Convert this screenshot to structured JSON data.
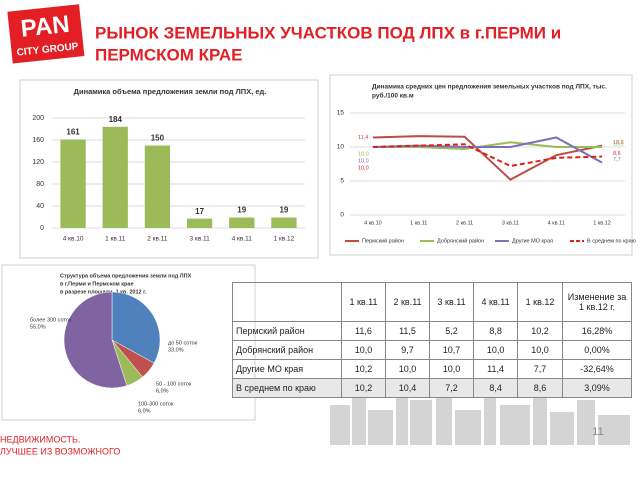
{
  "header": {
    "logo": [
      "PAN",
      "CITY GROUP"
    ],
    "title": [
      "РЫНОК ЗЕМЕЛЬНЫХ УЧАСТКОВ ПОД ЛПХ в г.ПЕРМИ и",
      "ПЕРМСКОМ КРАЕ"
    ]
  },
  "chart_data": [
    {
      "type": "bar",
      "title": "Динамика объема предложения земли под ЛПХ, ед.",
      "categories": [
        "4 кв.10",
        "1 кв.11",
        "2 кв.11",
        "3 кв.11",
        "4 кв.11",
        "1 кв.12"
      ],
      "values": [
        161,
        184,
        150,
        17,
        19,
        19
      ],
      "color": "#9bbb59",
      "ylim": [
        0,
        200
      ],
      "yticks": [
        0,
        40,
        80,
        120,
        160,
        200
      ],
      "grid": true
    },
    {
      "type": "line",
      "title": [
        "Динамика средних цен предложения земельных участков под ЛПХ, тыс.",
        "руб./100 кв.м"
      ],
      "categories": [
        "4 кв.10",
        "1 кв.11",
        "2 кв.11",
        "3 кв.11",
        "4 кв.11",
        "1 кв.12"
      ],
      "ylim": [
        0,
        15
      ],
      "yticks": [
        0,
        5,
        10,
        15
      ],
      "grid": true,
      "series": [
        {
          "name": "Пермский район",
          "color": "#be4b48",
          "values": [
            11.4,
            11.6,
            11.5,
            5.2,
            8.8,
            10.2
          ],
          "value_labels": [
            "11,4",
            null,
            null,
            null,
            null,
            "10,2"
          ]
        },
        {
          "name": "Добрянский район",
          "color": "#9bbb59",
          "values": [
            10.0,
            10.0,
            9.7,
            10.7,
            10.0,
            10.0
          ],
          "value_labels": [
            "10,0",
            null,
            null,
            null,
            null,
            "10,0"
          ]
        },
        {
          "name": "Другие МО края",
          "color": "#7e6fb8",
          "values": [
            10.0,
            10.2,
            10.0,
            10.0,
            11.4,
            7.7
          ],
          "value_labels": [
            "10,0",
            null,
            null,
            null,
            null,
            "7,7"
          ]
        },
        {
          "name": "В среднем по краю",
          "color": "#e0201b",
          "dashed": true,
          "values": [
            10.0,
            10.2,
            10.4,
            7.2,
            8.4,
            8.6
          ],
          "value_labels": [
            "10,0",
            null,
            null,
            null,
            null,
            "8,6"
          ]
        }
      ]
    },
    {
      "type": "pie",
      "title": [
        "Структура объема предложения земли под ЛПХ",
        "в г.Перми и Пермском крае",
        "в разрезе площади, 1 кв. 2012 г."
      ],
      "categories": [
        "до 50 соток",
        "50 - 100 соток",
        "100-300 соток",
        "более 300 соток"
      ],
      "values": [
        33.0,
        6.0,
        6.0,
        55.0
      ],
      "value_labels": [
        "33,0%",
        "6,0%",
        "6,0%",
        "55,0%"
      ],
      "colors": [
        "#4f81bd",
        "#c0504d",
        "#9bbb59",
        "#8064a2"
      ]
    }
  ],
  "table": {
    "header": [
      "1 кв.11",
      "2 кв.11",
      "3 кв.11",
      "4 кв.11",
      "1 кв.12",
      "Изменение за 1 кв.12 г."
    ],
    "rows": [
      [
        "Пермский район",
        "11,6",
        "11,5",
        "5,2",
        "8,8",
        "10,2",
        "16,28%"
      ],
      [
        "Добрянский район",
        "10,0",
        "9,7",
        "10,7",
        "10,0",
        "10,0",
        "0,00%"
      ],
      [
        "Другие МО края",
        "10,2",
        "10,0",
        "10,0",
        "11,4",
        "7,7",
        "-32,64%"
      ],
      [
        "В среднем по краю",
        "10,2",
        "10,4",
        "7,2",
        "8,4",
        "8,6",
        "3,09%"
      ]
    ]
  },
  "footer": {
    "slogan": [
      "НЕДВИЖИМОСТЬ.",
      "ЛУЧШЕЕ ИЗ ВОЗМОЖНОГО"
    ],
    "page": 11
  }
}
